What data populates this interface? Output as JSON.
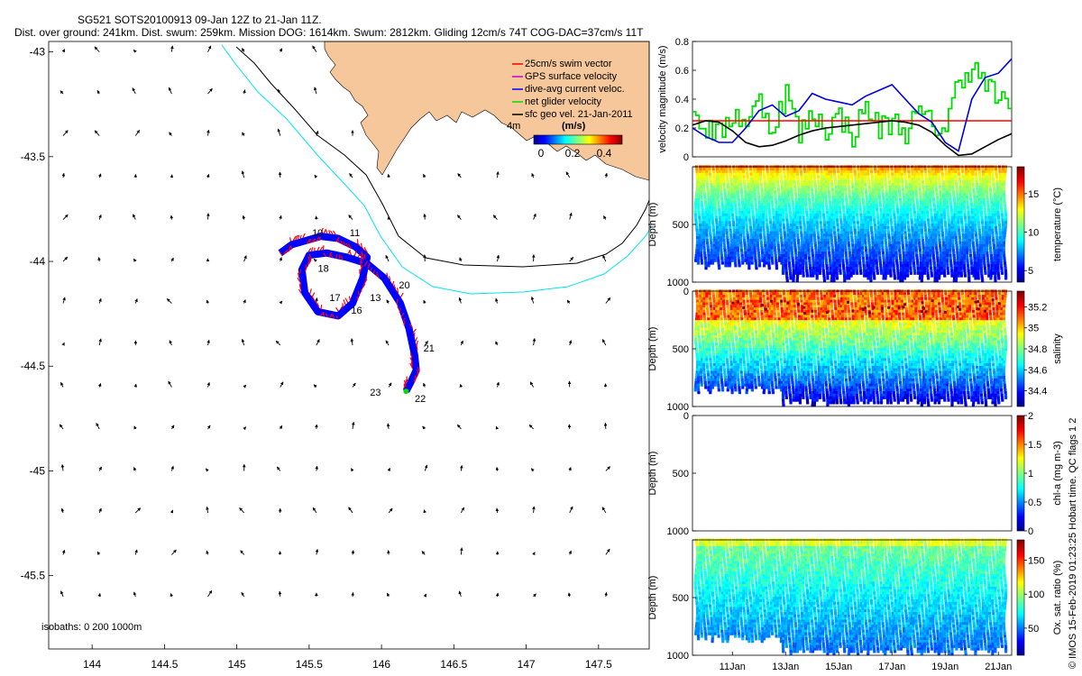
{
  "header": {
    "line1": "SG521 SOTS20100913 09-Jan 12Z to 21-Jan 11Z.",
    "line2": "Dist. over ground: 241km. Dist. swum: 259km. Mission DOG: 1614km. Swum: 2812km. Gliding 12cm/s 74T COG-DAC=37cm/s 11T"
  },
  "side_label": "© IMOS 15-Feb-2019 01:23:25 Hobart time. QC flags 1  2",
  "colors": {
    "land": "#f5c79a",
    "isobath_200": "#000000",
    "isobath_1000": "#00e5ee",
    "swim_vector": "#ff0000",
    "dac": "#0000ff",
    "net_glider": "#00dd00",
    "gps": "#cc00cc"
  },
  "chart_data": [
    {
      "type": "scatter",
      "name": "map",
      "xlim": [
        143.7,
        147.85
      ],
      "ylim": [
        -45.85,
        -42.95
      ],
      "xticks": [
        144,
        144.5,
        145,
        145.5,
        146,
        146.5,
        147,
        147.5
      ],
      "xticklabels": [
        "144",
        "144.5",
        "145",
        "145.5",
        "146",
        "146.5",
        "147",
        "147.5"
      ],
      "yticks": [
        -43,
        -43.5,
        -44,
        -44.5,
        -45,
        -45.5
      ],
      "yticklabels": [
        "-43",
        "-43.5",
        "-44",
        "-44.5",
        "-45",
        "-45.5"
      ],
      "legend": [
        "25cm/s swim vector",
        "GPS surface velocity",
        "dive-avg current veloc.",
        "net glider velocity",
        "sfc geo vel. 21-Jan-2011"
      ],
      "legend_extra": "4m",
      "colorbar": {
        "ticks": [
          "0",
          "0.2",
          "0.4"
        ],
        "unit": "(m/s)",
        "range": [
          0,
          0.5
        ]
      },
      "isobaths_label": "isobaths: 0   200   1000m",
      "day_labels": [
        {
          "text": "10",
          "lon": 145.52,
          "lat": -43.88
        },
        {
          "text": "11",
          "lon": 145.78,
          "lat": -43.88
        },
        {
          "text": "18",
          "lon": 145.56,
          "lat": -44.05
        },
        {
          "text": "17",
          "lon": 145.64,
          "lat": -44.19
        },
        {
          "text": "13",
          "lon": 145.92,
          "lat": -44.19
        },
        {
          "text": "16",
          "lon": 145.79,
          "lat": -44.25
        },
        {
          "text": "20",
          "lon": 146.12,
          "lat": -44.13
        },
        {
          "text": "21",
          "lon": 146.29,
          "lat": -44.43
        },
        {
          "text": "22",
          "lon": 146.23,
          "lat": -44.67
        },
        {
          "text": "23",
          "lon": 145.92,
          "lat": -44.64
        }
      ],
      "track": [
        [
          145.3,
          -43.96
        ],
        [
          145.38,
          -43.92
        ],
        [
          145.48,
          -43.9
        ],
        [
          145.58,
          -43.88
        ],
        [
          145.7,
          -43.89
        ],
        [
          145.82,
          -43.93
        ],
        [
          145.9,
          -43.98
        ],
        [
          145.87,
          -44.08
        ],
        [
          145.8,
          -44.2
        ],
        [
          145.7,
          -44.26
        ],
        [
          145.56,
          -44.24
        ],
        [
          145.47,
          -44.15
        ],
        [
          145.45,
          -44.04
        ],
        [
          145.5,
          -43.97
        ],
        [
          145.62,
          -43.96
        ],
        [
          145.76,
          -43.98
        ],
        [
          145.9,
          -44.01
        ],
        [
          146.02,
          -44.08
        ],
        [
          146.13,
          -44.2
        ],
        [
          146.19,
          -44.32
        ],
        [
          146.23,
          -44.45
        ],
        [
          146.24,
          -44.52
        ],
        [
          146.2,
          -44.58
        ],
        [
          146.17,
          -44.62
        ]
      ]
    },
    {
      "type": "line",
      "name": "velocity",
      "ylabel": "velocity magnitude (m/s)",
      "ylim": [
        0,
        0.8
      ],
      "yticks": [
        0,
        0.2,
        0.4,
        0.6,
        0.8
      ],
      "yticklabels": [
        "0",
        "0.2",
        "0.4",
        "0.6",
        "0.8"
      ],
      "xlim": [
        9.5,
        21.5
      ],
      "series": [
        {
          "name": "red",
          "x": [
            9.5,
            21.5
          ],
          "values": [
            0.25,
            0.25
          ]
        },
        {
          "name": "black",
          "x": [
            9.5,
            10,
            10.5,
            11,
            11.5,
            12,
            12.5,
            13,
            13.5,
            14,
            14.5,
            15,
            15.5,
            16,
            16.5,
            17,
            17.5,
            18,
            18.5,
            19,
            19.5,
            20,
            20.5,
            21,
            21.5
          ],
          "values": [
            0.22,
            0.25,
            0.24,
            0.18,
            0.1,
            0.07,
            0.08,
            0.11,
            0.15,
            0.18,
            0.2,
            0.21,
            0.22,
            0.23,
            0.24,
            0.25,
            0.24,
            0.22,
            0.17,
            0.08,
            0.01,
            0.02,
            0.07,
            0.12,
            0.16
          ]
        },
        {
          "name": "blue",
          "x": [
            9.5,
            10,
            10.5,
            11,
            11.5,
            12,
            12.5,
            13,
            13.5,
            14,
            14.5,
            15,
            15.5,
            16,
            16.5,
            17,
            17.5,
            18,
            18.5,
            19,
            19.5,
            20,
            20.5,
            21,
            21.5
          ],
          "values": [
            0.2,
            0.14,
            0.1,
            0.1,
            0.2,
            0.32,
            0.36,
            0.28,
            0.32,
            0.44,
            0.4,
            0.38,
            0.36,
            0.42,
            0.46,
            0.5,
            0.4,
            0.3,
            0.24,
            0.1,
            0.04,
            0.4,
            0.55,
            0.58,
            0.68
          ]
        },
        {
          "name": "green",
          "x": [
            9.5,
            10,
            10.5,
            11,
            11.5,
            12,
            12.5,
            13,
            13.5,
            14,
            14.5,
            15,
            15.5,
            16,
            16.5,
            17,
            17.5,
            18,
            18.5,
            19,
            19.5,
            20,
            20.5,
            21,
            21.5
          ],
          "values": [
            0.3,
            0.2,
            0.15,
            0.3,
            0.25,
            0.38,
            0.2,
            0.45,
            0.15,
            0.3,
            0.2,
            0.28,
            0.15,
            0.35,
            0.2,
            0.25,
            0.18,
            0.3,
            0.22,
            0.2,
            0.55,
            0.62,
            0.5,
            0.4,
            0.28
          ]
        }
      ]
    },
    {
      "type": "heatmap",
      "name": "temperature",
      "ylabel": "Depth (m)",
      "ylim": [
        0,
        1000
      ],
      "yticks": [
        0,
        500,
        1000
      ],
      "yticklabels": [
        "",
        "500",
        "1000"
      ],
      "cbar_label": "temperature (°C)",
      "cbar_range": [
        3.5,
        18.5
      ],
      "cbar_ticks": [
        5,
        10,
        15
      ],
      "cbar_ticklabels": [
        "5",
        "10",
        "15"
      ],
      "cmap": "jet"
    },
    {
      "type": "heatmap",
      "name": "salinity",
      "ylabel": "Depth (m)",
      "ylim": [
        0,
        1000
      ],
      "yticks": [
        0,
        500,
        1000
      ],
      "yticklabels": [
        "0",
        "500",
        "1000"
      ],
      "cbar_label": "salinity",
      "cbar_range": [
        34.25,
        35.35
      ],
      "cbar_ticks": [
        34.4,
        34.6,
        34.8,
        35,
        35.2
      ],
      "cbar_ticklabels": [
        "34.4",
        "34.6",
        "34.8",
        "35",
        "35.2"
      ],
      "cmap": "jet"
    },
    {
      "type": "heatmap",
      "name": "chla",
      "ylabel": "Depth (m)",
      "ylim": [
        0,
        1000
      ],
      "yticks": [
        0,
        500,
        1000
      ],
      "yticklabels": [
        "0",
        "500",
        "1000"
      ],
      "cbar_label": "chl-a (mg m-3)",
      "cbar_range": [
        0,
        2
      ],
      "cbar_ticks": [
        0,
        0.5,
        1,
        1.5,
        2
      ],
      "cbar_ticklabels": [
        "0",
        "0.5",
        "1",
        "1.5",
        "2"
      ],
      "cmap": "jet"
    },
    {
      "type": "heatmap",
      "name": "oxygen",
      "ylabel": "Depth (m)",
      "ylim": [
        0,
        1000
      ],
      "yticks": [
        0,
        500,
        1000
      ],
      "yticklabels": [
        "",
        "500",
        "1000"
      ],
      "cbar_label": "Ox. sat. ratio (%)",
      "cbar_range": [
        10,
        180
      ],
      "cbar_ticks": [
        50,
        100,
        150
      ],
      "cbar_ticklabels": [
        "50",
        "100",
        "150"
      ],
      "cmap": "jet",
      "xticks": [
        11,
        13,
        15,
        17,
        19,
        21
      ],
      "xticklabels": [
        "11Jan",
        "13Jan",
        "15Jan",
        "17Jan",
        "19Jan",
        "21Jan"
      ]
    }
  ]
}
